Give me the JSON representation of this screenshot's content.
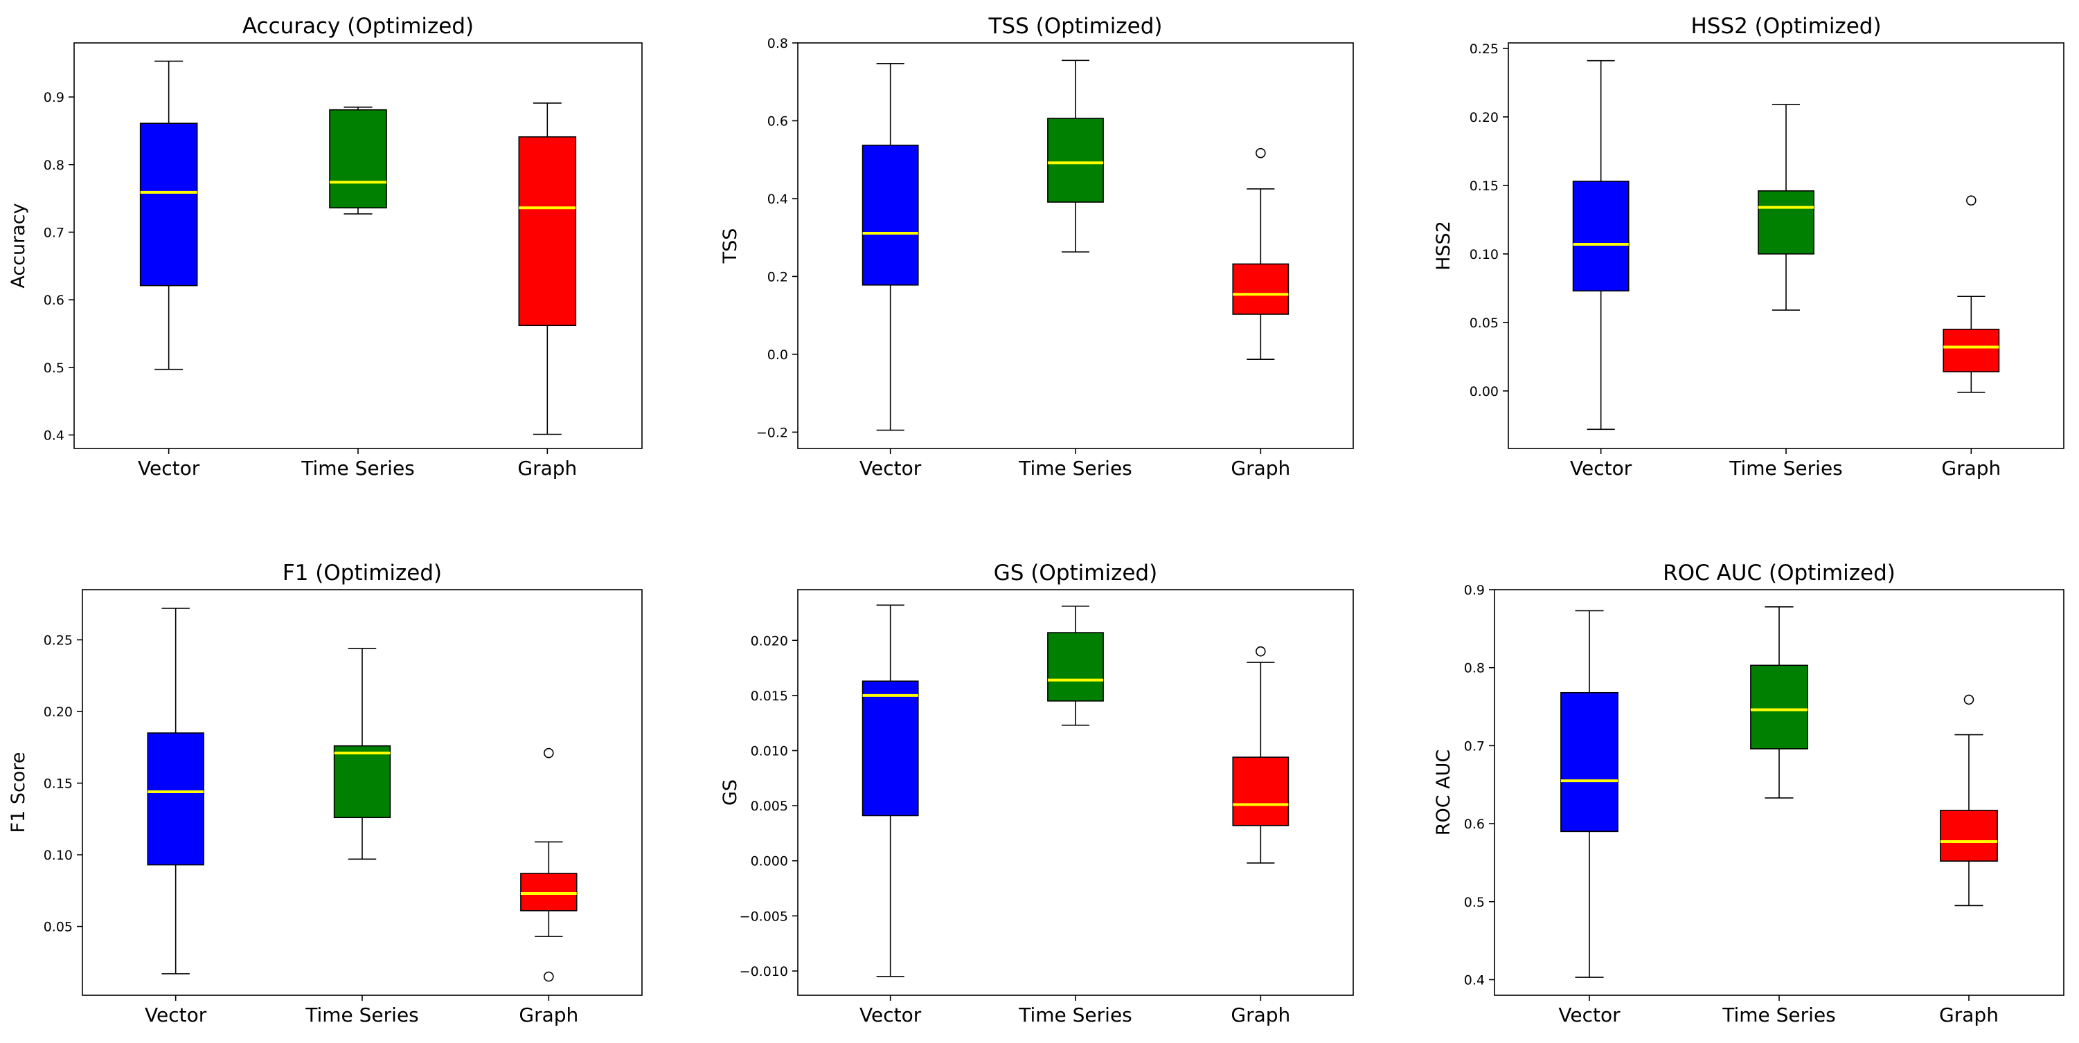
{
  "figure": {
    "colors": {
      "Vector": "#0000ff",
      "Time Series": "#008000",
      "Graph": "#ff0000",
      "median": "#ffff00"
    }
  },
  "chart_data": [
    {
      "type": "box",
      "title": "Accuracy (Optimized)",
      "xlabel": "",
      "ylabel": "Accuracy",
      "ylim": [
        0.38,
        0.98
      ],
      "yticks": [
        0.4,
        0.5,
        0.6,
        0.7,
        0.8,
        0.9
      ],
      "ytick_labels": [
        "0.4",
        "0.5",
        "0.6",
        "0.7",
        "0.8",
        "0.9"
      ],
      "categories": [
        "Vector",
        "Time Series",
        "Graph"
      ],
      "boxes": [
        {
          "name": "Vector",
          "whislo": 0.497,
          "q1": 0.621,
          "med": 0.759,
          "q3": 0.861,
          "whishi": 0.953,
          "fliers": []
        },
        {
          "name": "Time Series",
          "whislo": 0.727,
          "q1": 0.736,
          "med": 0.774,
          "q3": 0.881,
          "whishi": 0.885,
          "fliers": []
        },
        {
          "name": "Graph",
          "whislo": 0.401,
          "q1": 0.562,
          "med": 0.736,
          "q3": 0.841,
          "whishi": 0.891,
          "fliers": []
        }
      ]
    },
    {
      "type": "box",
      "title": "TSS (Optimized)",
      "xlabel": "",
      "ylabel": "TSS",
      "ylim": [
        -0.242,
        0.8
      ],
      "yticks": [
        -0.2,
        0.0,
        0.2,
        0.4,
        0.6,
        0.8
      ],
      "ytick_labels": [
        "−0.2",
        "0.0",
        "0.2",
        "0.4",
        "0.6",
        "0.8"
      ],
      "categories": [
        "Vector",
        "Time Series",
        "Graph"
      ],
      "boxes": [
        {
          "name": "Vector",
          "whislo": -0.195,
          "q1": 0.178,
          "med": 0.311,
          "q3": 0.537,
          "whishi": 0.747,
          "fliers": []
        },
        {
          "name": "Time Series",
          "whislo": 0.263,
          "q1": 0.391,
          "med": 0.492,
          "q3": 0.606,
          "whishi": 0.755,
          "fliers": []
        },
        {
          "name": "Graph",
          "whislo": -0.013,
          "q1": 0.103,
          "med": 0.154,
          "q3": 0.232,
          "whishi": 0.425,
          "fliers": [
            0.517
          ]
        }
      ]
    },
    {
      "type": "box",
      "title": "HSS2 (Optimized)",
      "xlabel": "",
      "ylabel": "HSS2",
      "ylim": [
        -0.042,
        0.254
      ],
      "yticks": [
        0.0,
        0.05,
        0.1,
        0.15,
        0.2,
        0.25
      ],
      "ytick_labels": [
        "0.00",
        "0.05",
        "0.10",
        "0.15",
        "0.20",
        "0.25"
      ],
      "categories": [
        "Vector",
        "Time Series",
        "Graph"
      ],
      "boxes": [
        {
          "name": "Vector",
          "whislo": -0.028,
          "q1": 0.073,
          "med": 0.107,
          "q3": 0.153,
          "whishi": 0.241,
          "fliers": []
        },
        {
          "name": "Time Series",
          "whislo": 0.059,
          "q1": 0.1,
          "med": 0.134,
          "q3": 0.146,
          "whishi": 0.209,
          "fliers": []
        },
        {
          "name": "Graph",
          "whislo": -0.001,
          "q1": 0.014,
          "med": 0.032,
          "q3": 0.045,
          "whishi": 0.069,
          "fliers": [
            0.139
          ]
        }
      ]
    },
    {
      "type": "box",
      "title": "F1 (Optimized)",
      "xlabel": "",
      "ylabel": "F1 Score",
      "ylim": [
        0.002,
        0.285
      ],
      "yticks": [
        0.05,
        0.1,
        0.15,
        0.2,
        0.25
      ],
      "ytick_labels": [
        "0.05",
        "0.10",
        "0.15",
        "0.20",
        "0.25"
      ],
      "categories": [
        "Vector",
        "Time Series",
        "Graph"
      ],
      "boxes": [
        {
          "name": "Vector",
          "whislo": 0.017,
          "q1": 0.093,
          "med": 0.144,
          "q3": 0.185,
          "whishi": 0.272,
          "fliers": []
        },
        {
          "name": "Time Series",
          "whislo": 0.097,
          "q1": 0.126,
          "med": 0.171,
          "q3": 0.176,
          "whishi": 0.244,
          "fliers": []
        },
        {
          "name": "Graph",
          "whislo": 0.043,
          "q1": 0.061,
          "med": 0.073,
          "q3": 0.087,
          "whishi": 0.109,
          "fliers": [
            0.171,
            0.015
          ]
        }
      ]
    },
    {
      "type": "box",
      "title": "GS (Optimized)",
      "xlabel": "",
      "ylabel": "GS",
      "ylim": [
        -0.0122,
        0.0246
      ],
      "yticks": [
        -0.01,
        -0.005,
        0.0,
        0.005,
        0.01,
        0.015,
        0.02
      ],
      "ytick_labels": [
        "−0.010",
        "−0.005",
        "0.000",
        "0.005",
        "0.010",
        "0.015",
        "0.020"
      ],
      "categories": [
        "Vector",
        "Time Series",
        "Graph"
      ],
      "boxes": [
        {
          "name": "Vector",
          "whislo": -0.0105,
          "q1": 0.0041,
          "med": 0.015,
          "q3": 0.0163,
          "whishi": 0.0232,
          "fliers": []
        },
        {
          "name": "Time Series",
          "whislo": 0.0123,
          "q1": 0.0145,
          "med": 0.0164,
          "q3": 0.0207,
          "whishi": 0.0231,
          "fliers": []
        },
        {
          "name": "Graph",
          "whislo": -0.0002,
          "q1": 0.0032,
          "med": 0.0051,
          "q3": 0.0094,
          "whishi": 0.018,
          "fliers": [
            0.019
          ]
        }
      ]
    },
    {
      "type": "box",
      "title": "ROC AUC (Optimized)",
      "xlabel": "",
      "ylabel": "ROC AUC",
      "ylim": [
        0.38,
        0.9
      ],
      "yticks": [
        0.4,
        0.5,
        0.6,
        0.7,
        0.8,
        0.9
      ],
      "ytick_labels": [
        "0.4",
        "0.5",
        "0.6",
        "0.7",
        "0.8",
        "0.9"
      ],
      "categories": [
        "Vector",
        "Time Series",
        "Graph"
      ],
      "boxes": [
        {
          "name": "Vector",
          "whislo": 0.403,
          "q1": 0.59,
          "med": 0.655,
          "q3": 0.768,
          "whishi": 0.873,
          "fliers": []
        },
        {
          "name": "Time Series",
          "whislo": 0.633,
          "q1": 0.696,
          "med": 0.746,
          "q3": 0.803,
          "whishi": 0.878,
          "fliers": []
        },
        {
          "name": "Graph",
          "whislo": 0.495,
          "q1": 0.552,
          "med": 0.577,
          "q3": 0.617,
          "whishi": 0.714,
          "fliers": [
            0.759
          ]
        }
      ]
    }
  ]
}
